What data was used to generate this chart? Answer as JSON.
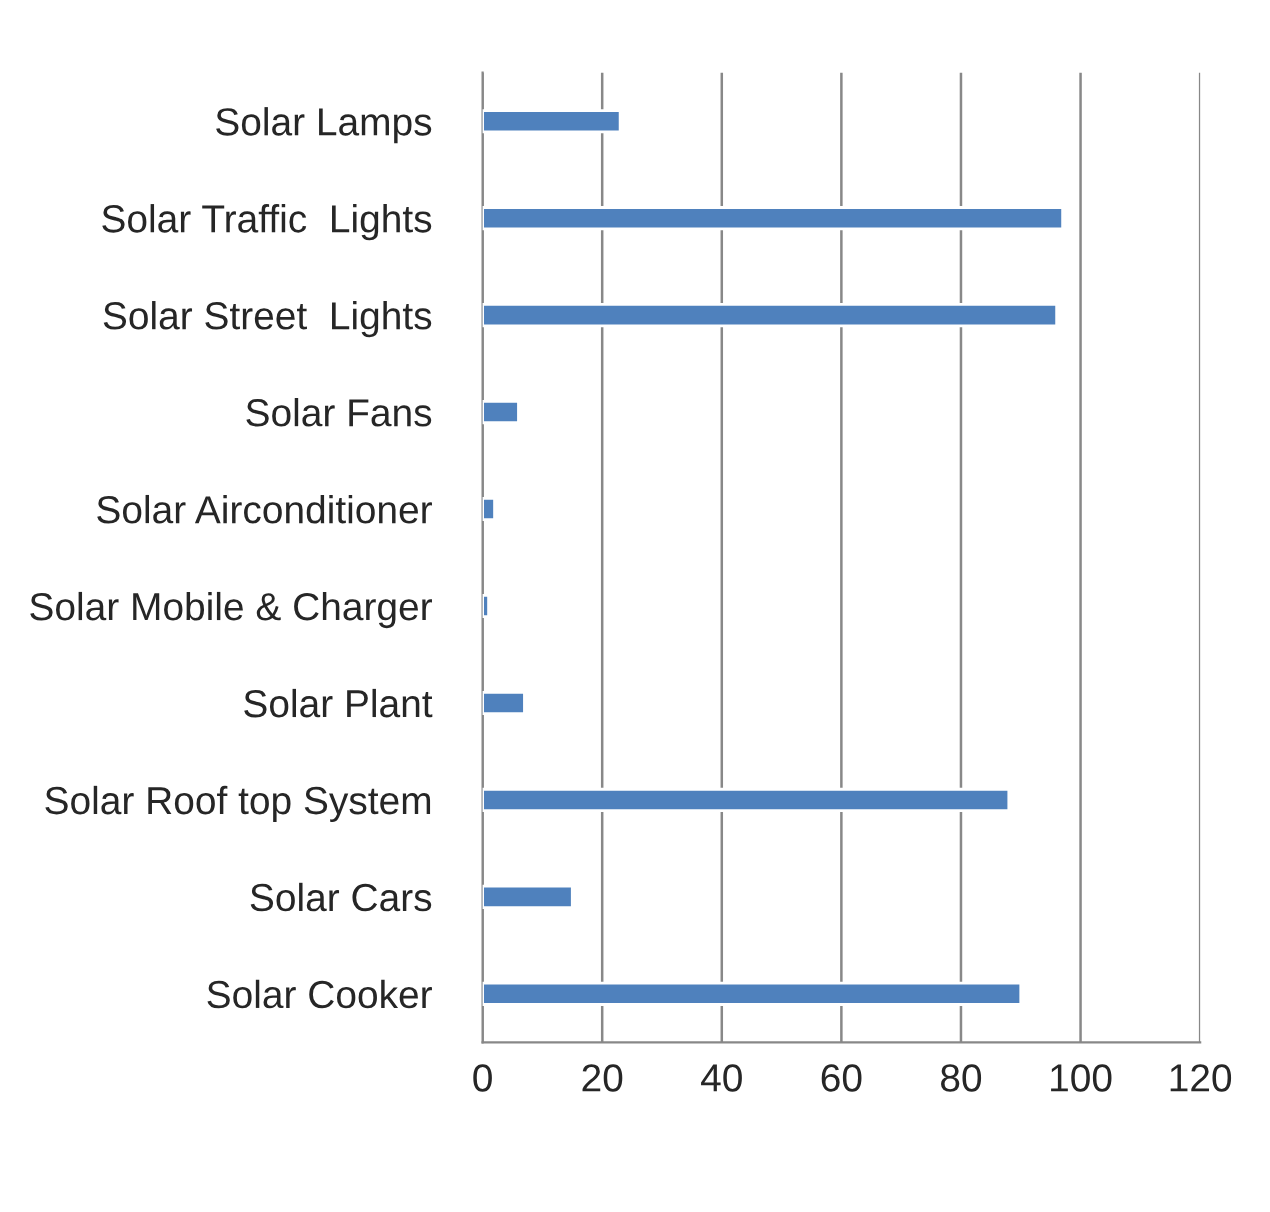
{
  "chart_data": {
    "type": "bar",
    "orientation": "horizontal",
    "categories": [
      "Solar Lamps",
      "Solar Traffic  Lights",
      "Solar Street  Lights",
      "Solar Fans",
      "Solar Airconditioner",
      "Solar Mobile & Charger",
      "Solar Plant",
      "Solar Roof top System",
      "Solar Cars",
      "Solar Cooker"
    ],
    "values": [
      23,
      97,
      96,
      6,
      2,
      1,
      7,
      88,
      15,
      90
    ],
    "color": "#4f81bd",
    "xlim": [
      0,
      120
    ],
    "xticks": [
      0,
      20,
      40,
      60,
      80,
      100,
      120
    ],
    "grid": "x",
    "legend": false
  }
}
